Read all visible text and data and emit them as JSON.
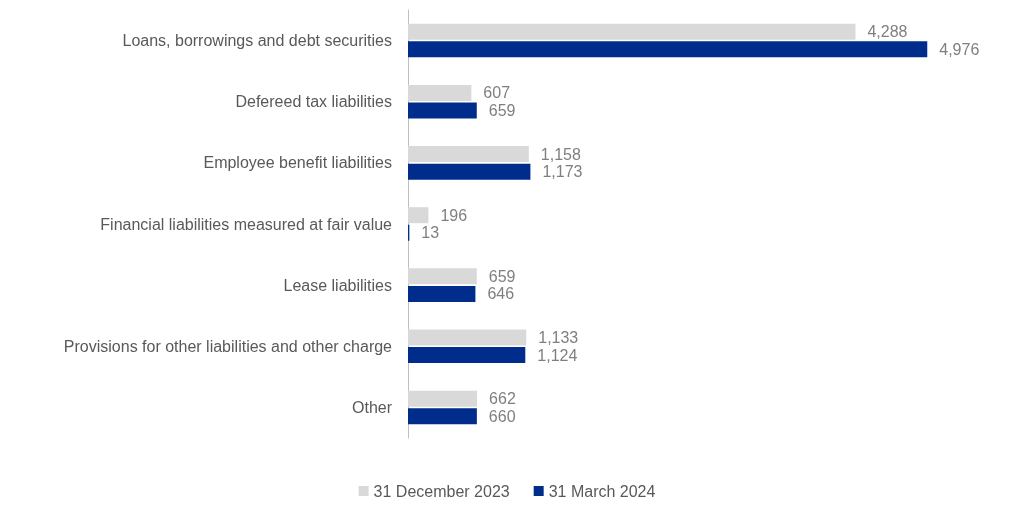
{
  "chart_data": {
    "type": "bar",
    "orientation": "horizontal",
    "categories": [
      "Loans, borrowings and debt securities",
      "Defereed tax liabilities",
      "Employee benefit liabilities",
      "Financial liabilities measured at fair value",
      "Lease liabilities",
      "Provisions for other liabilities and other charge",
      "Other"
    ],
    "series": [
      {
        "name": "31 December 2023",
        "color": "#d9d9d9",
        "values": [
          4288,
          607,
          1158,
          196,
          659,
          1133,
          662
        ],
        "value_labels": [
          "4,288",
          "607",
          "1,158",
          "196",
          "659",
          "1,133",
          "662"
        ]
      },
      {
        "name": "31 March 2024",
        "color": "#002d8c",
        "values": [
          4976,
          659,
          1173,
          13,
          646,
          1124,
          660
        ],
        "value_labels": [
          "4,976",
          "659",
          "1,173",
          "13",
          "646",
          "1,124",
          "660"
        ]
      }
    ],
    "legend": "bottom"
  }
}
